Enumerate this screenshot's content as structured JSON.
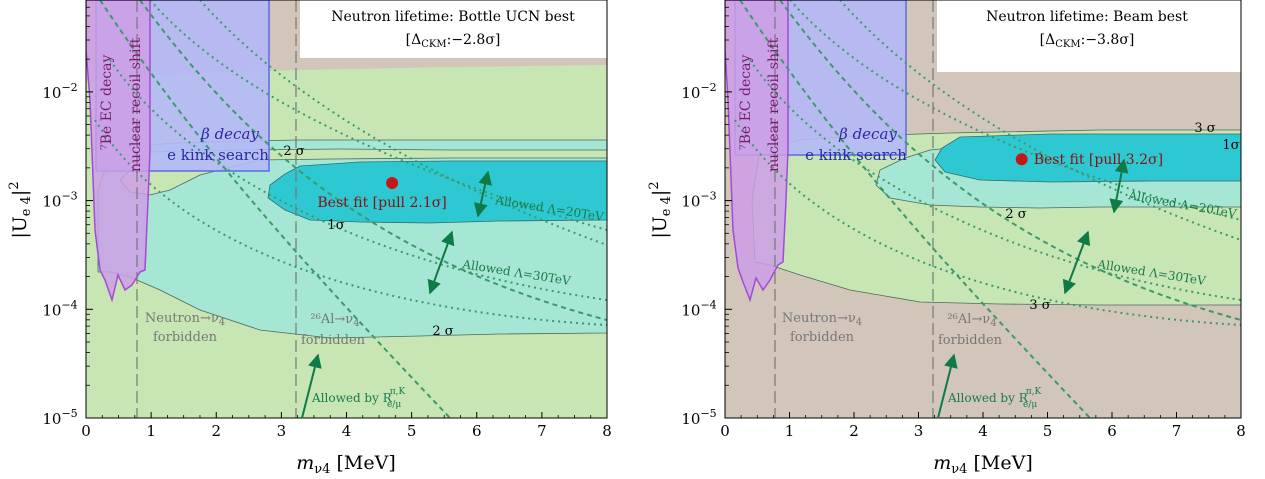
{
  "chart_data": [
    {
      "type": "area",
      "title": "Neutron lifetime: Bottle UCN best",
      "subtitle": "[Δ",
      "subtitle_sub": "CKM",
      "subtitle_val": ":−2.8σ]",
      "xlabel_main": "m",
      "xlabel_sub": "ν4",
      "xlabel_unit": " [MeV]",
      "ylabel_main": "|U",
      "ylabel_sub": "e 4",
      "ylabel_end": "|",
      "ylabel_sup": "2",
      "xlim": [
        0,
        8
      ],
      "ylim": [
        1e-05,
        0.07
      ],
      "y_scale": "log",
      "x_ticks": [
        "0",
        "1",
        "2",
        "3",
        "4",
        "5",
        "6",
        "7",
        "8"
      ],
      "y_ticks": [
        {
          "base": "10",
          "exp": "−5",
          "v": 1e-05
        },
        {
          "base": "10",
          "exp": "−4",
          "v": 0.0001
        },
        {
          "base": "10",
          "exp": "−3",
          "v": 0.001
        },
        {
          "base": "10",
          "exp": "−2",
          "v": 0.01
        }
      ],
      "best_fit": {
        "x": 4.7,
        "y": 0.00145,
        "label": "Best fit [pull 2.1σ]"
      },
      "labels": {
        "be_decay": "⁷Be EC decay",
        "nuclear_recoil": "nuclear recoil shift",
        "beta_decay": "β decay",
        "kink": "e  kink search",
        "sigma1": "1σ",
        "sigma2a": "2 σ",
        "sigma2b": "2 σ",
        "allowed20": "Allowed Λ=20TeV",
        "allowed30": "Allowed Λ=30TeV",
        "neutron1": "Neutron→ν",
        "neutron1_sub": "4",
        "neutron2": "forbidden",
        "al1": "²⁶Al→ν",
        "al1_sub": "4",
        "al2": "forbidden",
        "allowed_by": "Allowed by R",
        "allowed_by_sup": "π,K",
        "allowed_by_sub": "e/μ"
      },
      "colors": {
        "green": "#c7e6b4",
        "teal": "#a6e6d4",
        "cyan": "#2ec8d2",
        "tan": "#d2c6ba",
        "blue": "#b4b8f6",
        "purple": "#d2a8e6",
        "best": "#c41818",
        "dark_green": "#1a7a4a"
      }
    },
    {
      "type": "area",
      "title": "Neutron lifetime: Beam best",
      "subtitle": "[Δ",
      "subtitle_sub": "CKM",
      "subtitle_val": ":−3.8σ]",
      "xlabel_main": "m",
      "xlabel_sub": "ν4",
      "xlabel_unit": " [MeV]",
      "ylabel_main": "|U",
      "ylabel_sub": "e 4",
      "ylabel_end": "|",
      "ylabel_sup": "2",
      "xlim": [
        0,
        8
      ],
      "ylim": [
        1e-05,
        0.07
      ],
      "y_scale": "log",
      "x_ticks": [
        "0",
        "1",
        "2",
        "3",
        "4",
        "5",
        "6",
        "7",
        "8"
      ],
      "y_ticks": [
        {
          "base": "10",
          "exp": "−5",
          "v": 1e-05
        },
        {
          "base": "10",
          "exp": "−4",
          "v": 0.0001
        },
        {
          "base": "10",
          "exp": "−3",
          "v": 0.001
        },
        {
          "base": "10",
          "exp": "−2",
          "v": 0.01
        }
      ],
      "best_fit": {
        "x": 4.6,
        "y": 0.0024,
        "label": "Best fit [pull 3.2σ]"
      },
      "labels": {
        "be_decay": "⁷Be EC decay",
        "nuclear_recoil": "nuclear recoil shift",
        "beta_decay": "β decay",
        "kink": "e  kink search",
        "sigma1": "1σ",
        "sigma2a": "2 σ",
        "sigma3a": "3 σ",
        "sigma3b": "3 σ",
        "allowed20": "Allowed Λ=20TeV",
        "allowed30": "Allowed Λ=30TeV",
        "neutron1": "Neutron→ν",
        "neutron1_sub": "4",
        "neutron2": "forbidden",
        "al1": "²⁶Al→ν",
        "al1_sub": "4",
        "al2": "forbidden",
        "allowed_by": "Allowed by R",
        "allowed_by_sup": "π,K",
        "allowed_by_sub": "e/μ"
      },
      "colors": {
        "green": "#c7e6b4",
        "teal": "#a6e6d4",
        "cyan": "#2ec8d2",
        "tan": "#d2c6ba",
        "blue": "#b4b8f6",
        "purple": "#d2a8e6",
        "best": "#c41818",
        "dark_green": "#1a7a4a"
      }
    }
  ]
}
